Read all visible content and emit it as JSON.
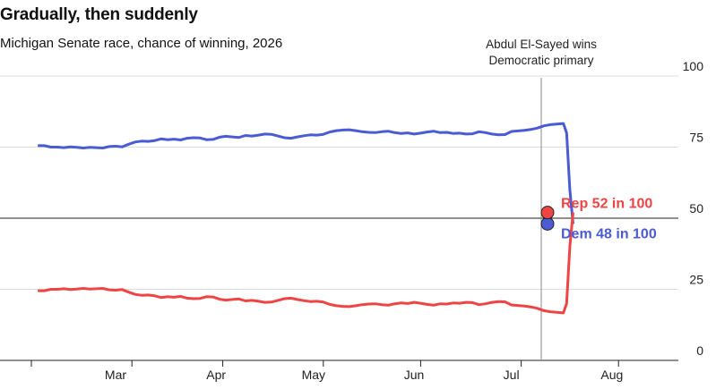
{
  "header": {
    "title": "Gradually, then suddenly",
    "subtitle": "Michigan Senate race, chance of winning, 2026"
  },
  "colors": {
    "dem": "#4a5bd4",
    "rep": "#ef4444",
    "grid": "#dcdcdc",
    "axis": "#222222"
  },
  "chart_data": {
    "type": "line",
    "title": "Gradually, then suddenly",
    "subtitle": "Michigan Senate race, chance of winning, 2026",
    "xlabel": "",
    "ylabel": "",
    "ylim": [
      0,
      100
    ],
    "y_ticks": [
      0,
      25,
      50,
      75,
      100
    ],
    "x_ticks": [
      {
        "label": "Mar",
        "day": 74
      },
      {
        "label": "Apr",
        "day": 105
      },
      {
        "label": "May",
        "day": 135
      },
      {
        "label": "Jun",
        "day": 166
      },
      {
        "label": "Jul",
        "day": 196
      },
      {
        "label": "Aug",
        "day": 227
      }
    ],
    "x_tick_marks": [
      45,
      76,
      104,
      135,
      165,
      196,
      226,
      257
    ],
    "annotation": {
      "lines": [
        "Abdul El-Sayed wins",
        "Democratic primary"
      ],
      "day": 218
    },
    "series": [
      {
        "name": "Dem",
        "color": "#4a5bd4",
        "end_label": "Dem 48 in 100",
        "points": [
          [
            47,
            75.5
          ],
          [
            49,
            75.5
          ],
          [
            51,
            75.0
          ],
          [
            53,
            75.0
          ],
          [
            55,
            74.8
          ],
          [
            57,
            75.1
          ],
          [
            59,
            74.9
          ],
          [
            61,
            74.7
          ],
          [
            63,
            74.9
          ],
          [
            65,
            74.8
          ],
          [
            67,
            74.7
          ],
          [
            69,
            75.2
          ],
          [
            71,
            75.3
          ],
          [
            73,
            75.1
          ],
          [
            75,
            76.0
          ],
          [
            77,
            76.8
          ],
          [
            79,
            77.1
          ],
          [
            81,
            77.0
          ],
          [
            83,
            77.3
          ],
          [
            85,
            77.9
          ],
          [
            87,
            77.6
          ],
          [
            89,
            77.8
          ],
          [
            91,
            77.5
          ],
          [
            93,
            78.1
          ],
          [
            95,
            78.3
          ],
          [
            97,
            78.2
          ],
          [
            99,
            77.6
          ],
          [
            101,
            77.7
          ],
          [
            103,
            78.5
          ],
          [
            105,
            78.8
          ],
          [
            107,
            78.6
          ],
          [
            109,
            78.4
          ],
          [
            111,
            79.1
          ],
          [
            113,
            78.9
          ],
          [
            115,
            79.2
          ],
          [
            117,
            79.6
          ],
          [
            119,
            79.5
          ],
          [
            121,
            78.9
          ],
          [
            123,
            78.3
          ],
          [
            125,
            78.1
          ],
          [
            127,
            78.6
          ],
          [
            129,
            79.0
          ],
          [
            131,
            79.3
          ],
          [
            133,
            79.2
          ],
          [
            135,
            79.5
          ],
          [
            137,
            80.3
          ],
          [
            139,
            80.8
          ],
          [
            141,
            81.0
          ],
          [
            143,
            81.1
          ],
          [
            145,
            80.8
          ],
          [
            147,
            80.4
          ],
          [
            149,
            80.2
          ],
          [
            151,
            80.1
          ],
          [
            153,
            80.4
          ],
          [
            155,
            80.6
          ],
          [
            157,
            80.1
          ],
          [
            159,
            79.8
          ],
          [
            161,
            80.0
          ],
          [
            163,
            79.6
          ],
          [
            165,
            79.9
          ],
          [
            167,
            80.3
          ],
          [
            169,
            80.6
          ],
          [
            171,
            80.1
          ],
          [
            173,
            80.2
          ],
          [
            175,
            79.8
          ],
          [
            177,
            79.9
          ],
          [
            179,
            79.6
          ],
          [
            181,
            79.7
          ],
          [
            183,
            80.4
          ],
          [
            185,
            80.1
          ],
          [
            187,
            79.6
          ],
          [
            189,
            79.3
          ],
          [
            191,
            79.4
          ],
          [
            193,
            80.5
          ],
          [
            195,
            80.7
          ],
          [
            197,
            80.9
          ],
          [
            199,
            81.2
          ],
          [
            201,
            81.7
          ],
          [
            203,
            82.5
          ],
          [
            205,
            82.9
          ],
          [
            207,
            83.1
          ],
          [
            209,
            83.3
          ],
          [
            210,
            80.0
          ],
          [
            211,
            60.0
          ],
          [
            212,
            48.0
          ]
        ]
      },
      {
        "name": "Rep",
        "color": "#ef4444",
        "end_label": "Rep 52 in 100",
        "points": [
          [
            47,
            24.5
          ],
          [
            49,
            24.5
          ],
          [
            51,
            25.0
          ],
          [
            53,
            25.0
          ],
          [
            55,
            25.2
          ],
          [
            57,
            24.9
          ],
          [
            59,
            25.1
          ],
          [
            61,
            25.3
          ],
          [
            63,
            25.1
          ],
          [
            65,
            25.2
          ],
          [
            67,
            25.3
          ],
          [
            69,
            24.8
          ],
          [
            71,
            24.7
          ],
          [
            73,
            24.9
          ],
          [
            75,
            24.0
          ],
          [
            77,
            23.2
          ],
          [
            79,
            22.9
          ],
          [
            81,
            23.0
          ],
          [
            83,
            22.7
          ],
          [
            85,
            22.1
          ],
          [
            87,
            22.4
          ],
          [
            89,
            22.2
          ],
          [
            91,
            22.5
          ],
          [
            93,
            21.9
          ],
          [
            95,
            21.7
          ],
          [
            97,
            21.8
          ],
          [
            99,
            22.4
          ],
          [
            101,
            22.3
          ],
          [
            103,
            21.5
          ],
          [
            105,
            21.2
          ],
          [
            107,
            21.4
          ],
          [
            109,
            21.6
          ],
          [
            111,
            20.9
          ],
          [
            113,
            21.1
          ],
          [
            115,
            20.8
          ],
          [
            117,
            20.4
          ],
          [
            119,
            20.5
          ],
          [
            121,
            21.1
          ],
          [
            123,
            21.7
          ],
          [
            125,
            21.9
          ],
          [
            127,
            21.4
          ],
          [
            129,
            21.0
          ],
          [
            131,
            20.7
          ],
          [
            133,
            20.8
          ],
          [
            135,
            20.5
          ],
          [
            137,
            19.7
          ],
          [
            139,
            19.2
          ],
          [
            141,
            19.0
          ],
          [
            143,
            18.9
          ],
          [
            145,
            19.2
          ],
          [
            147,
            19.6
          ],
          [
            149,
            19.8
          ],
          [
            151,
            19.9
          ],
          [
            153,
            19.6
          ],
          [
            155,
            19.4
          ],
          [
            157,
            19.9
          ],
          [
            159,
            20.2
          ],
          [
            161,
            20.0
          ],
          [
            163,
            20.4
          ],
          [
            165,
            20.1
          ],
          [
            167,
            19.7
          ],
          [
            169,
            19.4
          ],
          [
            171,
            19.9
          ],
          [
            173,
            19.8
          ],
          [
            175,
            20.2
          ],
          [
            177,
            20.1
          ],
          [
            179,
            20.4
          ],
          [
            181,
            20.3
          ],
          [
            183,
            19.6
          ],
          [
            185,
            19.9
          ],
          [
            187,
            20.4
          ],
          [
            189,
            20.7
          ],
          [
            191,
            20.6
          ],
          [
            193,
            19.5
          ],
          [
            195,
            19.3
          ],
          [
            197,
            19.1
          ],
          [
            199,
            18.8
          ],
          [
            201,
            18.3
          ],
          [
            203,
            17.5
          ],
          [
            205,
            17.1
          ],
          [
            207,
            16.9
          ],
          [
            209,
            16.7
          ],
          [
            210,
            20.0
          ],
          [
            211,
            40.0
          ],
          [
            212,
            52.0
          ]
        ]
      }
    ]
  }
}
